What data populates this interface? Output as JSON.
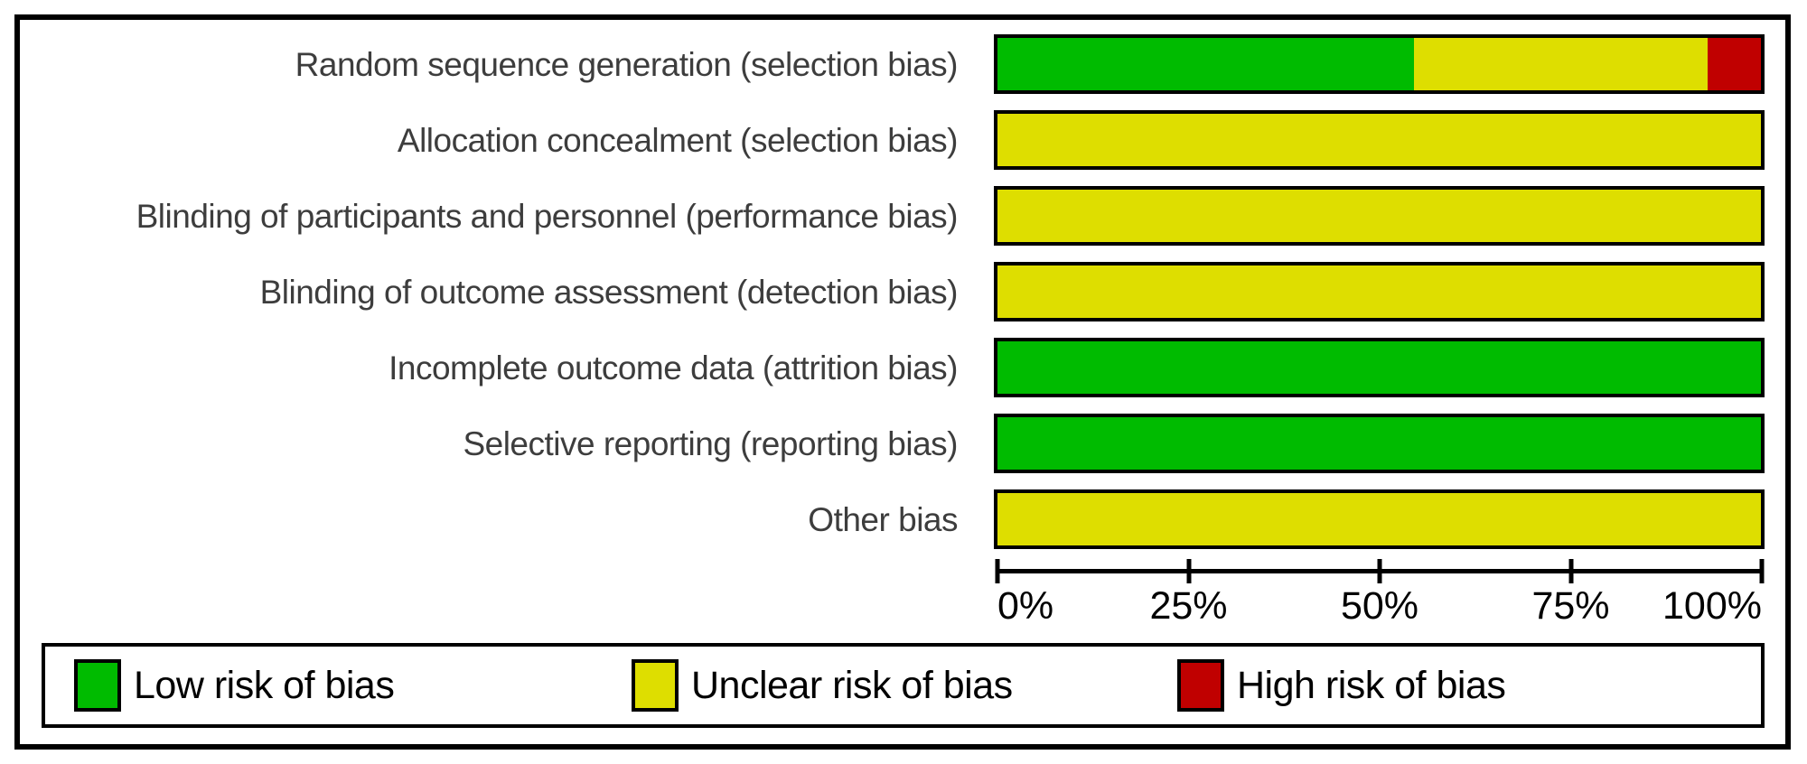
{
  "chart_data": {
    "type": "bar",
    "stacked": true,
    "orientation": "horizontal",
    "title": "",
    "xlabel": "",
    "ylabel": "",
    "categories": [
      "Random sequence generation (selection bias)",
      "Allocation concealment (selection bias)",
      "Blinding of participants and personnel (performance bias)",
      "Blinding of outcome assessment (detection bias)",
      "Incomplete outcome data (attrition bias)",
      "Selective reporting (reporting bias)",
      "Other bias"
    ],
    "series": [
      {
        "key": "low",
        "name": "Low risk of bias",
        "color": "#00bb00",
        "values": [
          54.5,
          0,
          0,
          0,
          100,
          100,
          0
        ]
      },
      {
        "key": "unclear",
        "name": "Unclear risk of bias",
        "color": "#dede00",
        "values": [
          38.5,
          100,
          100,
          100,
          0,
          0,
          100
        ]
      },
      {
        "key": "high",
        "name": "High risk of bias",
        "color": "#c00000",
        "values": [
          7,
          0,
          0,
          0,
          0,
          0,
          0
        ]
      }
    ],
    "x_ticks": [
      "0%",
      "25%",
      "50%",
      "75%",
      "100%"
    ],
    "xlim": [
      0,
      100
    ],
    "grid": false,
    "legend_position": "bottom"
  },
  "legend": {
    "items": [
      {
        "key": "low",
        "label": "Low risk of bias",
        "color": "#00bb00"
      },
      {
        "key": "unclear",
        "label": "Unclear risk of bias",
        "color": "#dede00"
      },
      {
        "key": "high",
        "label": "High risk of bias",
        "color": "#c00000"
      }
    ]
  },
  "colors": {
    "low_risk": "#00bb00",
    "unclear_risk": "#dede00",
    "high_risk": "#c00000",
    "border": "#000000",
    "label_text": "#3d3d3d"
  }
}
